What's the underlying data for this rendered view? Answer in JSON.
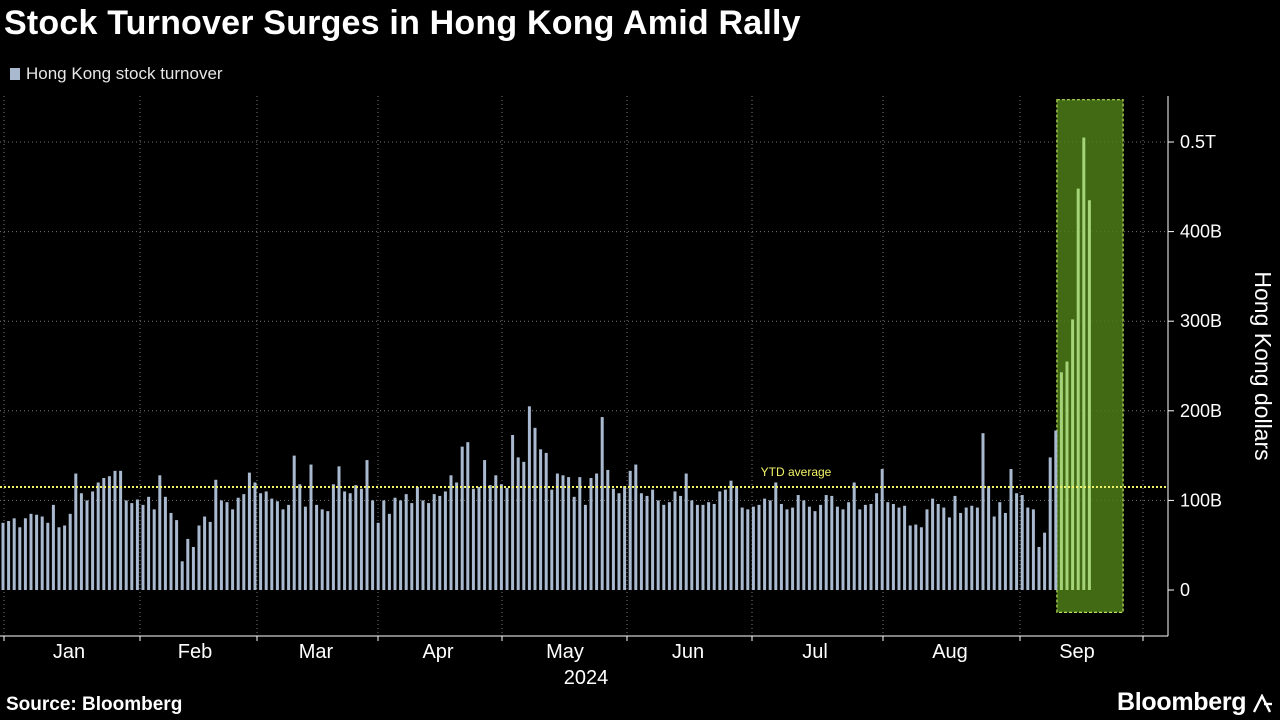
{
  "title": "Stock Turnover Surges in Hong Kong Amid Rally",
  "source": "Source: Bloomberg",
  "brand": "Bloomberg",
  "colors": {
    "background": "#000000",
    "bar": "#a9b9cf",
    "highlight_bar": "#a4d477",
    "highlight_box_fill": "#4e7b16",
    "highlight_box_border": "#b9e25a",
    "ytd_line": "#f3f36a",
    "grid": "#777777",
    "text": "#ffffff"
  },
  "chart_data": {
    "type": "bar",
    "title": "Stock Turnover Surges in Hong Kong Amid Rally",
    "ylabel": "Hong Kong dollars",
    "xlabel": "2024",
    "year_label": "2024",
    "ylim": [
      -25,
      545
    ],
    "y_ticks": [
      0,
      100,
      200,
      300,
      400,
      500
    ],
    "y_tick_labels": [
      "0",
      "100B",
      "200B",
      "300B",
      "400B",
      "0.5T"
    ],
    "x_tick_labels": [
      "Jan",
      "Feb",
      "Mar",
      "Apr",
      "May",
      "Jun",
      "Jul",
      "Aug",
      "Sep"
    ],
    "grid": true,
    "legend_position": "top-left",
    "series": [
      {
        "name": "Hong Kong stock turnover",
        "values": [
          75,
          77,
          80,
          70,
          80,
          85,
          84,
          82,
          75,
          95,
          70,
          72,
          85,
          130,
          108,
          100,
          110,
          120,
          125,
          127,
          133,
          133,
          100,
          97,
          101,
          95,
          104,
          90,
          128,
          104,
          86,
          78,
          32,
          57,
          48,
          72,
          82,
          76,
          123,
          100,
          98,
          90,
          103,
          107,
          131,
          120,
          108,
          110,
          102,
          99,
          90,
          95,
          150,
          118,
          93,
          140,
          95,
          90,
          88,
          118,
          138,
          110,
          108,
          117,
          113,
          145,
          100,
          75,
          100,
          85,
          103,
          100,
          107,
          97,
          115,
          100,
          97,
          107,
          105,
          110,
          128,
          120,
          160,
          165,
          113,
          115,
          145,
          117,
          128,
          118,
          114,
          173,
          148,
          143,
          205,
          181,
          157,
          153,
          112,
          130,
          128,
          126,
          104,
          126,
          95,
          125,
          130,
          193,
          134,
          113,
          108,
          116,
          133,
          140,
          108,
          105,
          112,
          100,
          95,
          98,
          110,
          105,
          130,
          100,
          95,
          95,
          98,
          96,
          110,
          112,
          122,
          116,
          92,
          90,
          93,
          95,
          102,
          100,
          120,
          96,
          90,
          92,
          106,
          100,
          93,
          88,
          95,
          106,
          105,
          93,
          90,
          98,
          120,
          90,
          95,
          96,
          108,
          135,
          98,
          96,
          92,
          94,
          72,
          73,
          70,
          90,
          102,
          96,
          92,
          81,
          105,
          86,
          92,
          94,
          92,
          175,
          116,
          82,
          98,
          86,
          135,
          108,
          106,
          92,
          90,
          48,
          64,
          148,
          178,
          243,
          255,
          302,
          448,
          505,
          435
        ],
        "label_value": 117
      }
    ],
    "highlight": {
      "from_index": 189,
      "to_index": 196
    },
    "reference_line": {
      "label": "YTD average",
      "value": 115
    }
  }
}
